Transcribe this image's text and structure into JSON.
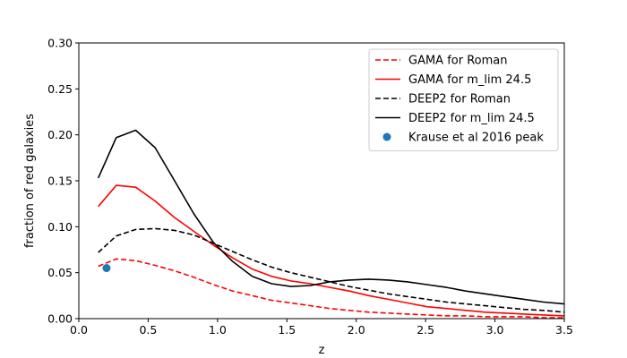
{
  "chart_data": {
    "type": "line",
    "title": "",
    "xlabel": "z",
    "ylabel": "fraction of red galaxies",
    "xlim": [
      0.0,
      3.5
    ],
    "ylim": [
      0.0,
      0.3
    ],
    "xticks": [
      "0.0",
      "0.5",
      "1.0",
      "1.5",
      "2.0",
      "2.5",
      "3.0",
      "3.5"
    ],
    "yticks": [
      "0.00",
      "0.05",
      "0.10",
      "0.15",
      "0.20",
      "0.25",
      "0.30"
    ],
    "grid": false,
    "legend_position": "top-right",
    "series": [
      {
        "name": "GAMA for Roman",
        "color": "#ff0000",
        "dash": "dashed",
        "x": [
          0.14,
          0.27,
          0.41,
          0.55,
          0.69,
          0.83,
          0.97,
          1.11,
          1.25,
          1.39,
          1.53,
          1.67,
          1.81,
          1.95,
          2.09,
          2.23,
          2.37,
          2.51,
          2.65,
          2.79,
          2.93,
          3.07,
          3.21,
          3.35,
          3.5
        ],
        "y": [
          0.057,
          0.065,
          0.063,
          0.058,
          0.052,
          0.045,
          0.037,
          0.03,
          0.025,
          0.02,
          0.017,
          0.014,
          0.011,
          0.009,
          0.007,
          0.006,
          0.005,
          0.004,
          0.003,
          0.003,
          0.002,
          0.002,
          0.002,
          0.001,
          0.001
        ]
      },
      {
        "name": "GAMA for m_lim 24.5",
        "color": "#ff0000",
        "dash": "solid",
        "x": [
          0.14,
          0.27,
          0.41,
          0.55,
          0.69,
          0.83,
          0.97,
          1.11,
          1.25,
          1.39,
          1.53,
          1.67,
          1.81,
          1.95,
          2.09,
          2.23,
          2.37,
          2.51,
          2.65,
          2.79,
          2.93,
          3.07,
          3.21,
          3.35,
          3.5
        ],
        "y": [
          0.122,
          0.145,
          0.143,
          0.128,
          0.11,
          0.095,
          0.08,
          0.066,
          0.054,
          0.046,
          0.041,
          0.038,
          0.034,
          0.03,
          0.025,
          0.021,
          0.017,
          0.013,
          0.011,
          0.009,
          0.007,
          0.006,
          0.005,
          0.004,
          0.003
        ]
      },
      {
        "name": "DEEP2 for Roman",
        "color": "#000000",
        "dash": "dashed",
        "x": [
          0.14,
          0.27,
          0.41,
          0.55,
          0.69,
          0.83,
          0.97,
          1.11,
          1.25,
          1.39,
          1.53,
          1.67,
          1.81,
          1.95,
          2.09,
          2.23,
          2.37,
          2.51,
          2.65,
          2.79,
          2.93,
          3.07,
          3.21,
          3.35,
          3.5
        ],
        "y": [
          0.072,
          0.09,
          0.097,
          0.098,
          0.096,
          0.091,
          0.082,
          0.073,
          0.064,
          0.056,
          0.05,
          0.045,
          0.04,
          0.035,
          0.031,
          0.027,
          0.024,
          0.021,
          0.018,
          0.016,
          0.014,
          0.012,
          0.01,
          0.009,
          0.007
        ]
      },
      {
        "name": "DEEP2 for m_lim 24.5",
        "color": "#000000",
        "dash": "solid",
        "x": [
          0.14,
          0.27,
          0.41,
          0.55,
          0.69,
          0.83,
          0.97,
          1.11,
          1.25,
          1.39,
          1.53,
          1.67,
          1.81,
          1.95,
          2.09,
          2.23,
          2.37,
          2.51,
          2.65,
          2.79,
          2.93,
          3.07,
          3.21,
          3.35,
          3.5
        ],
        "y": [
          0.153,
          0.197,
          0.205,
          0.186,
          0.15,
          0.114,
          0.083,
          0.062,
          0.046,
          0.038,
          0.035,
          0.036,
          0.04,
          0.042,
          0.043,
          0.042,
          0.04,
          0.037,
          0.034,
          0.03,
          0.027,
          0.024,
          0.021,
          0.018,
          0.016
        ]
      }
    ],
    "points": [
      {
        "name": "Krause et al 2016 peak",
        "color": "#1f77b4",
        "x": 0.2,
        "y": 0.055
      }
    ]
  }
}
